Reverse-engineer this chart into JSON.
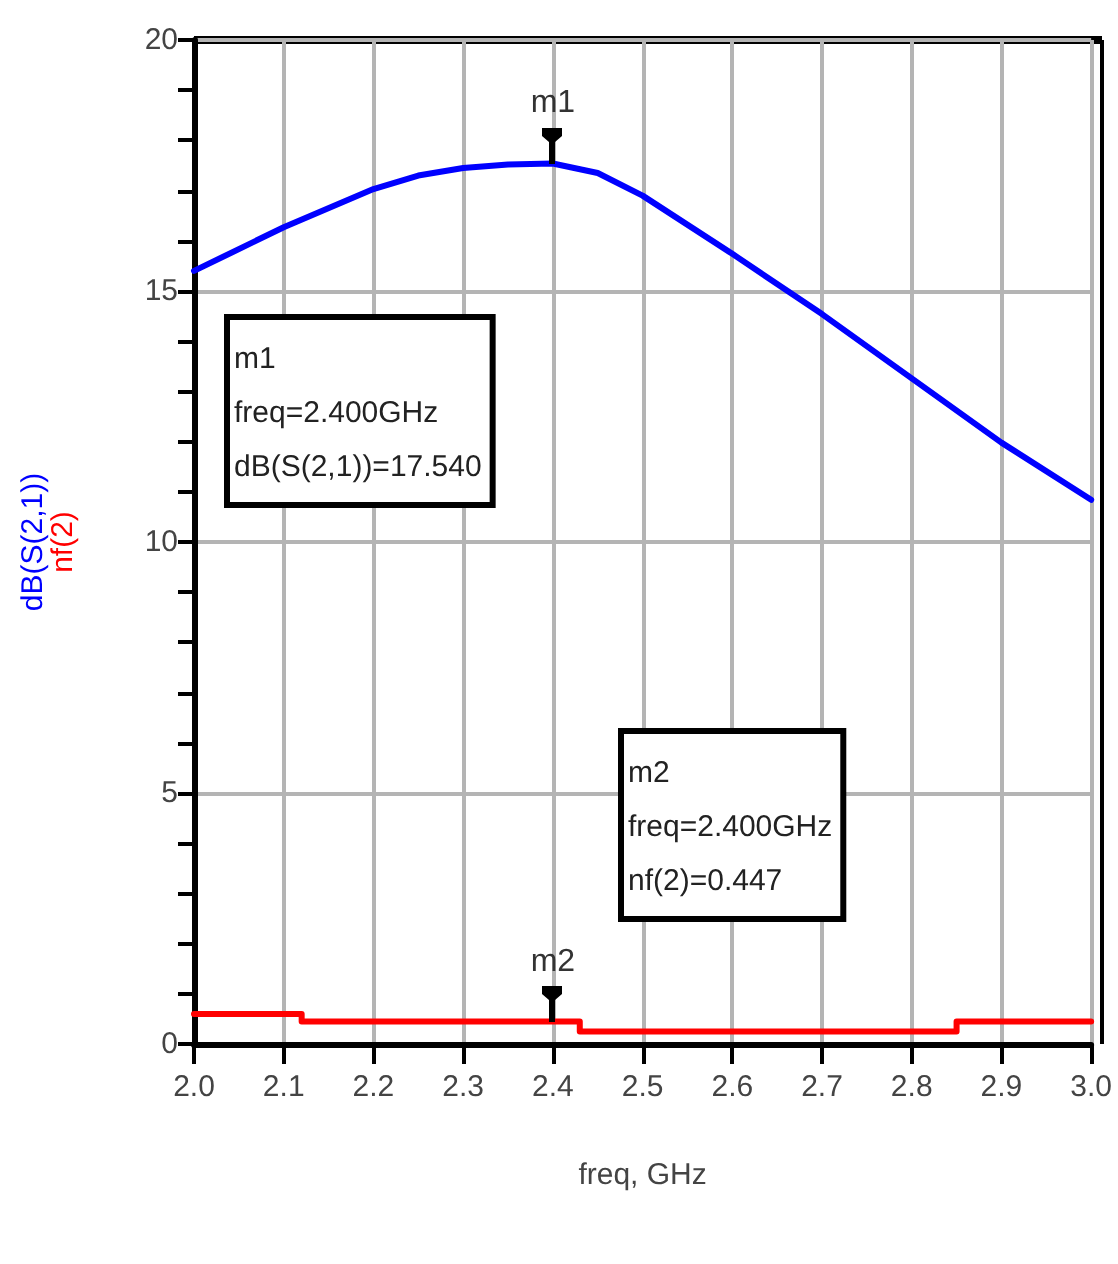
{
  "chart_data": {
    "type": "line",
    "xlabel": "freq, GHz",
    "x": [
      2.0,
      2.1,
      2.2,
      2.25,
      2.3,
      2.35,
      2.4,
      2.45,
      2.5,
      2.6,
      2.7,
      2.8,
      2.9,
      3.0
    ],
    "series": [
      {
        "name": "dB(S(2,1))",
        "color": "#0000ff",
        "values": [
          15.4,
          16.27,
          17.03,
          17.3,
          17.45,
          17.52,
          17.54,
          17.35,
          16.9,
          15.74,
          14.54,
          13.26,
          11.98,
          10.84
        ]
      },
      {
        "name": "nf(2)",
        "color": "#ff0000",
        "x": [
          2.0,
          2.12,
          2.12,
          2.43,
          2.43,
          2.85,
          2.85,
          3.0
        ],
        "values": [
          0.6,
          0.6,
          0.447,
          0.447,
          0.25,
          0.25,
          0.447,
          0.447
        ]
      }
    ],
    "xlim": [
      2.0,
      3.0
    ],
    "xticks": [
      {
        "value": 2.0,
        "label": "2.0"
      },
      2.1,
      2.2,
      2.3,
      2.4,
      2.5,
      2.6,
      2.7,
      2.8,
      2.9,
      {
        "value": 3.0,
        "label": "3.0"
      }
    ],
    "ylim": [
      0,
      20
    ],
    "yticks": [
      0,
      5,
      10,
      15,
      20
    ],
    "grid": true,
    "marker": "none",
    "line_style": "solid",
    "annotations": [
      {
        "text": "m1",
        "x": 2.4,
        "y": 17.54
      },
      {
        "text": "m2",
        "x": 2.4,
        "y": 0.447
      },
      "m1\nfreq=2.400GHz\ndB(S(2,1))=17.540",
      "m2\nfreq=2.400GHz\nnf(2)=0.447"
    ]
  }
}
